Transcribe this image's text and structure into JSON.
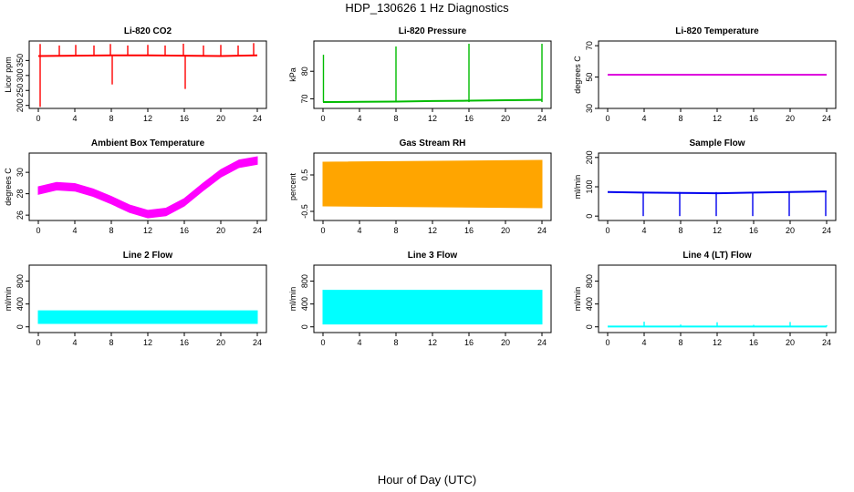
{
  "figure": {
    "title": "HDP_130626  1 Hz Diagnostics",
    "xlabel": "Hour of Day (UTC)"
  },
  "chart_data": [
    {
      "type": "line",
      "title": "Li-820 CO2",
      "ylabel": "Licor ppm",
      "color": "#ff0000",
      "xlim": [
        0,
        24
      ],
      "ylim": [
        190,
        415
      ],
      "xticks": [
        0,
        4,
        8,
        12,
        16,
        20,
        24
      ],
      "yticks": [
        200,
        250,
        300,
        350
      ],
      "series": [
        {
          "x": [
            0,
            4,
            8,
            12,
            16,
            20,
            24
          ],
          "y": [
            365,
            366,
            367,
            367,
            366,
            365,
            367
          ]
        }
      ],
      "spikes": [
        {
          "x": 0.2,
          "y": 405
        },
        {
          "x": 0.2,
          "y": 195
        },
        {
          "x": 2.3,
          "y": 400
        },
        {
          "x": 4.1,
          "y": 402
        },
        {
          "x": 6.1,
          "y": 400
        },
        {
          "x": 7.9,
          "y": 405
        },
        {
          "x": 8.1,
          "y": 270
        },
        {
          "x": 9.8,
          "y": 400
        },
        {
          "x": 12.0,
          "y": 402
        },
        {
          "x": 13.9,
          "y": 400
        },
        {
          "x": 15.9,
          "y": 406
        },
        {
          "x": 16.1,
          "y": 255
        },
        {
          "x": 18.1,
          "y": 400
        },
        {
          "x": 20.0,
          "y": 402
        },
        {
          "x": 21.9,
          "y": 400
        },
        {
          "x": 23.6,
          "y": 408
        }
      ]
    },
    {
      "type": "line",
      "title": "Li-820 Pressure",
      "ylabel": "kPa",
      "color": "#00bb00",
      "xlim": [
        0,
        24
      ],
      "ylim": [
        66.5,
        91
      ],
      "xticks": [
        0,
        4,
        8,
        12,
        16,
        20,
        24
      ],
      "yticks": [
        70,
        80
      ],
      "series": [
        {
          "x": [
            0,
            4,
            8,
            12,
            16,
            20,
            24
          ],
          "y": [
            68.8,
            68.9,
            69.0,
            69.2,
            69.3,
            69.5,
            69.6
          ]
        }
      ],
      "spikes": [
        {
          "x": 0.05,
          "y": 86
        },
        {
          "x": 8.0,
          "y": 89
        },
        {
          "x": 16.0,
          "y": 90
        },
        {
          "x": 24.0,
          "y": 90
        }
      ]
    },
    {
      "type": "line",
      "title": "Li-820 Temperature",
      "ylabel": "degrees C",
      "color": "#dd00dd",
      "xlim": [
        0,
        24
      ],
      "ylim": [
        30,
        73
      ],
      "xticks": [
        0,
        4,
        8,
        12,
        16,
        20,
        24
      ],
      "yticks": [
        30,
        50,
        70
      ],
      "series": [
        {
          "x": [
            0,
            24
          ],
          "y": [
            51.5,
            51.5
          ]
        }
      ]
    },
    {
      "type": "area",
      "title": "Ambient Box Temperature",
      "ylabel": "degrees C",
      "color": "#ff00ff",
      "xlim": [
        0,
        24
      ],
      "ylim": [
        25.5,
        31.8
      ],
      "xticks": [
        0,
        4,
        8,
        12,
        16,
        20,
        24
      ],
      "yticks": [
        26,
        28,
        30
      ],
      "series": [
        {
          "x": [
            0,
            2,
            4,
            6,
            8,
            10,
            12,
            14,
            16,
            18,
            20,
            22,
            24
          ],
          "y": [
            28.3,
            28.7,
            28.6,
            28.1,
            27.4,
            26.6,
            26.1,
            26.3,
            27.2,
            28.6,
            29.9,
            30.8,
            31.1
          ]
        }
      ],
      "band": 0.35
    },
    {
      "type": "area",
      "title": "Gas Stream RH",
      "ylabel": "percent",
      "color": "#ffa500",
      "xlim": [
        0,
        24
      ],
      "ylim": [
        -0.75,
        1.1
      ],
      "xticks": [
        0,
        4,
        8,
        12,
        16,
        20,
        24
      ],
      "yticks": [
        -0.5,
        0.5
      ],
      "series": [
        {
          "x": [
            0,
            24
          ],
          "y": [
            0.85,
            0.9
          ],
          "ylow": [
            -0.35,
            -0.4
          ]
        }
      ]
    },
    {
      "type": "line",
      "title": "Sample Flow",
      "ylabel": "ml/min",
      "color": "#0000ee",
      "xlim": [
        0,
        24
      ],
      "ylim": [
        -15,
        215
      ],
      "xticks": [
        0,
        4,
        8,
        12,
        16,
        20,
        24
      ],
      "yticks": [
        0,
        100,
        200
      ],
      "series": [
        {
          "x": [
            0,
            4,
            8,
            12,
            16,
            20,
            24
          ],
          "y": [
            82,
            80,
            79,
            78,
            80,
            82,
            84
          ]
        }
      ],
      "spikes": [
        {
          "x": 3.9,
          "y": 0
        },
        {
          "x": 7.9,
          "y": 0
        },
        {
          "x": 11.9,
          "y": 0
        },
        {
          "x": 15.9,
          "y": 0
        },
        {
          "x": 19.9,
          "y": 0
        },
        {
          "x": 23.9,
          "y": 0
        }
      ]
    },
    {
      "type": "area",
      "title": "Line 2 Flow",
      "ylabel": "ml/min",
      "color": "#00ffff",
      "xlim": [
        0,
        24
      ],
      "ylim": [
        -100,
        1080
      ],
      "xticks": [
        0,
        4,
        8,
        12,
        16,
        20,
        24
      ],
      "yticks": [
        0,
        400,
        800
      ],
      "series": [
        {
          "x": [
            0,
            24
          ],
          "y": [
            280,
            280
          ],
          "ylow": [
            60,
            60
          ]
        }
      ]
    },
    {
      "type": "area",
      "title": "Line 3 Flow",
      "ylabel": "ml/min",
      "color": "#00ffff",
      "xlim": [
        0,
        24
      ],
      "ylim": [
        -100,
        1080
      ],
      "xticks": [
        0,
        4,
        8,
        12,
        16,
        20,
        24
      ],
      "yticks": [
        0,
        400,
        800
      ],
      "series": [
        {
          "x": [
            0,
            24
          ],
          "y": [
            640,
            640
          ],
          "ylow": [
            50,
            50
          ]
        }
      ]
    },
    {
      "type": "line",
      "title": "Line 4 (LT) Flow",
      "ylabel": "ml/min",
      "color": "#00ffff",
      "xlim": [
        0,
        24
      ],
      "ylim": [
        -100,
        1080
      ],
      "xticks": [
        0,
        4,
        8,
        12,
        16,
        20,
        24
      ],
      "yticks": [
        0,
        400,
        800
      ],
      "series": [
        {
          "x": [
            0,
            24
          ],
          "y": [
            5,
            5
          ]
        }
      ],
      "spikes": [
        {
          "x": 4,
          "y": 90
        },
        {
          "x": 8,
          "y": 40
        },
        {
          "x": 12,
          "y": 80
        },
        {
          "x": 16,
          "y": 35
        },
        {
          "x": 20,
          "y": 85
        },
        {
          "x": 24,
          "y": 30
        }
      ]
    }
  ]
}
